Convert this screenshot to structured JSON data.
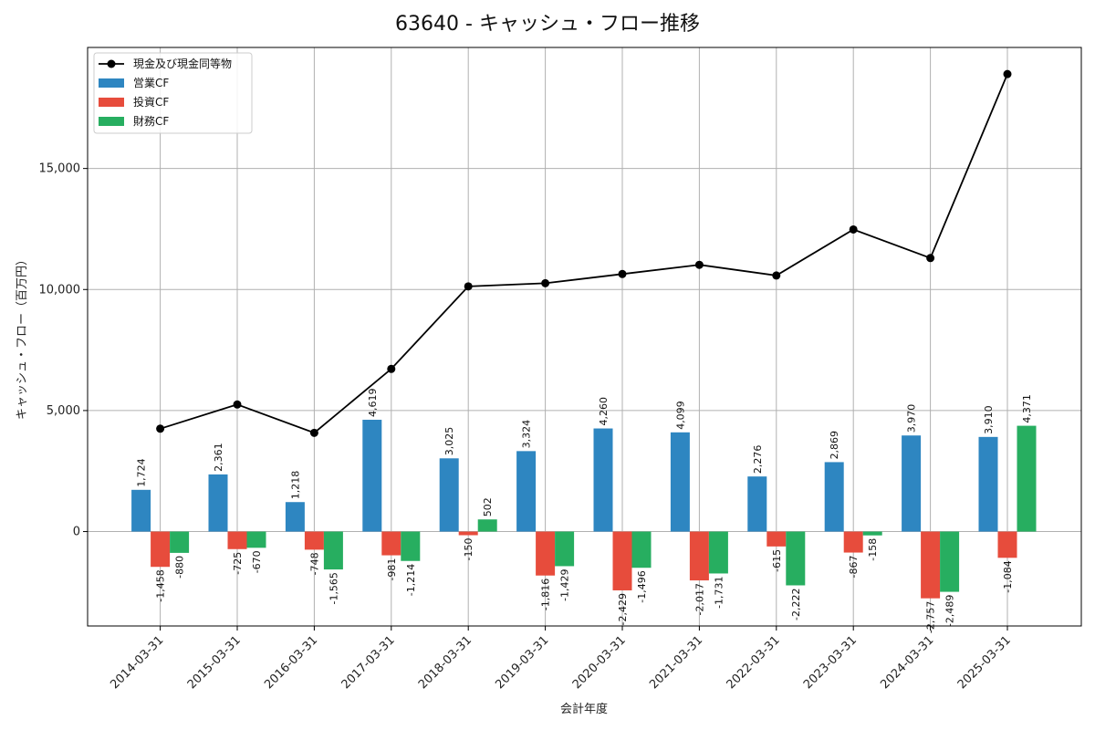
{
  "chart_data": {
    "type": "bar",
    "title": "63640 - キャッシュ・フロー推移",
    "xlabel": "会計年度",
    "ylabel": "キャッシュ・フロー（百万円）",
    "categories": [
      "2014-03-31",
      "2015-03-31",
      "2016-03-31",
      "2017-03-31",
      "2018-03-31",
      "2019-03-31",
      "2020-03-31",
      "2021-03-31",
      "2022-03-31",
      "2023-03-31",
      "2024-03-31",
      "2025-03-31"
    ],
    "series": [
      {
        "name": "営業CF",
        "type": "bar",
        "color": "#2e86c1",
        "values": [
          1724,
          2361,
          1218,
          4619,
          3025,
          3324,
          4260,
          4099,
          2276,
          2869,
          3970,
          3910
        ],
        "labels": [
          "1,724",
          "2,361",
          "1,218",
          "4,619",
          "3,025",
          "3,324",
          "4,260",
          "4,099",
          "2,276",
          "2,869",
          "3,970",
          "3,910"
        ]
      },
      {
        "name": "投資CF",
        "type": "bar",
        "color": "#e74c3c",
        "values": [
          -1458,
          -725,
          -748,
          -981,
          -150,
          -1816,
          -2429,
          -2017,
          -615,
          -867,
          -2757,
          -1084
        ],
        "labels": [
          "-1,458",
          "-725",
          "-748",
          "-981",
          "-150",
          "-1,816",
          "-2,429",
          "-2,017",
          "-615",
          "-867",
          "-2,757",
          "-1,084"
        ]
      },
      {
        "name": "財務CF",
        "type": "bar",
        "color": "#27ae60",
        "values": [
          -880,
          -670,
          -1565,
          -1214,
          502,
          -1429,
          -1496,
          -1731,
          -2222,
          -158,
          -2489,
          4371
        ],
        "labels": [
          "-880",
          "-670",
          "-1,565",
          "-1,214",
          "502",
          "-1,429",
          "-1,496",
          "-1,731",
          "-2,222",
          "-158",
          "-2,489",
          "4,371"
        ]
      },
      {
        "name": "現金及び現金同等物",
        "type": "line",
        "color": "#000000",
        "values": [
          4250,
          5250,
          4080,
          6720,
          10130,
          10260,
          10640,
          11020,
          10580,
          12480,
          11300,
          18900
        ]
      }
    ],
    "yticks": [
      0,
      5000,
      10000,
      15000
    ],
    "ytick_labels": [
      "0",
      "5,000",
      "10,000",
      "15,000"
    ],
    "ylim": [
      -3900,
      20000
    ],
    "grid": true,
    "legend_position": "top-left"
  }
}
